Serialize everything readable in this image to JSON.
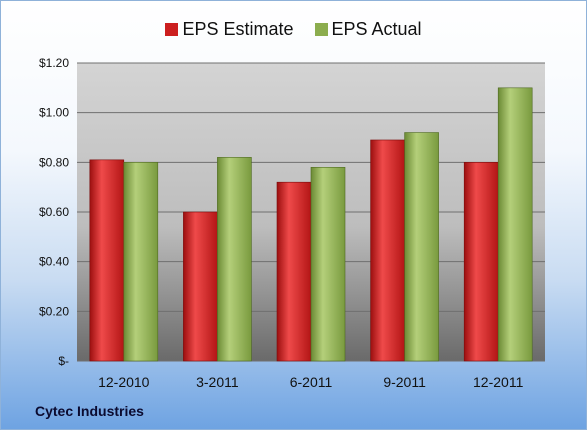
{
  "chart_data": {
    "type": "bar",
    "categories": [
      "12-2010",
      "3-2011",
      "6-2011",
      "9-2011",
      "12-2011"
    ],
    "series": [
      {
        "name": "EPS Estimate",
        "values": [
          0.81,
          0.6,
          0.72,
          0.89,
          0.8
        ],
        "color": "#cc1f1f"
      },
      {
        "name": "EPS Actual",
        "values": [
          0.8,
          0.82,
          0.78,
          0.92,
          1.1
        ],
        "color": "#8cad4e"
      }
    ],
    "yticks": [
      "$-",
      "$0.20",
      "$0.40",
      "$0.60",
      "$0.80",
      "$1.00",
      "$1.20"
    ],
    "ylim": [
      0,
      1.2
    ],
    "grid": true,
    "legend_position": "top",
    "source_label": "Cytec Industries"
  }
}
